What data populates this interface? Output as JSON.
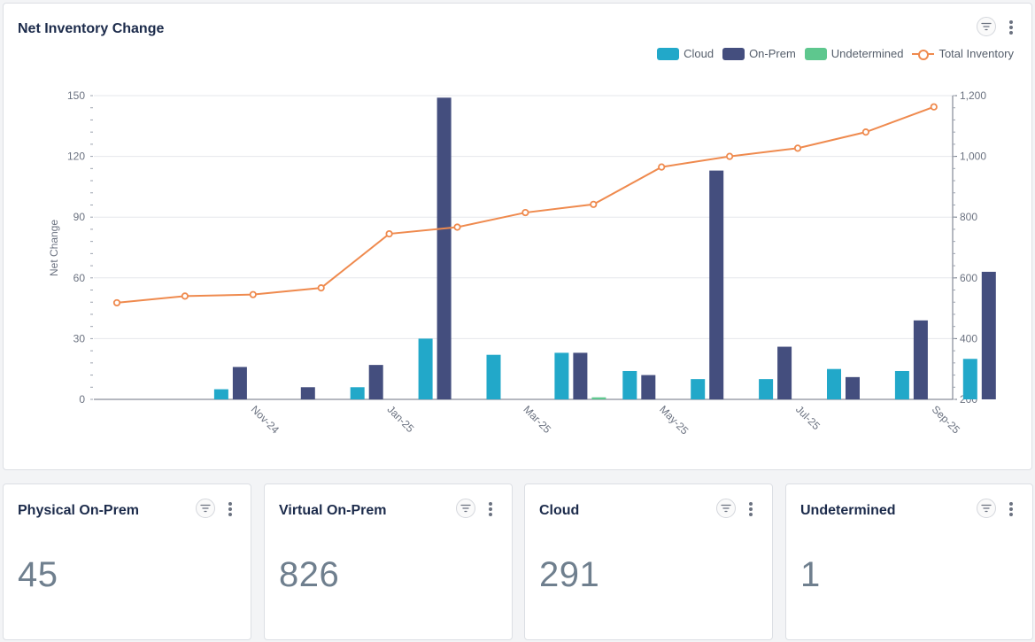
{
  "chart_card": {
    "title": "Net Inventory Change",
    "legend": [
      {
        "label": "Cloud",
        "color": "#22a8c9",
        "kind": "bar"
      },
      {
        "label": "On-Prem",
        "color": "#444e7e",
        "kind": "bar"
      },
      {
        "label": "Undetermined",
        "color": "#5ec78e",
        "kind": "bar"
      },
      {
        "label": "Total Inventory",
        "color": "#ef8a4e",
        "kind": "line"
      }
    ]
  },
  "chart_data": {
    "type": "bar",
    "title": "Net Inventory Change",
    "ylabel": "Net Change",
    "y2label": "",
    "ylim": [
      0,
      150
    ],
    "y2lim": [
      200,
      1200
    ],
    "yticks": [
      0,
      30,
      60,
      90,
      120,
      150
    ],
    "y2ticks": [
      "200",
      "400",
      "600",
      "800",
      "1,000",
      "1,200"
    ],
    "y2tick_values": [
      200,
      400,
      600,
      800,
      1000,
      1200
    ],
    "categories": [
      "Oct-24",
      "Nov-24",
      "Dec-24",
      "Jan-25",
      "Feb-25",
      "Mar-25",
      "Apr-25",
      "May-25",
      "Jun-25",
      "Jul-25",
      "Aug-25",
      "Sep-25",
      "Oct-25"
    ],
    "x_tick_labels": [
      "",
      "Nov-24",
      "",
      "Jan-25",
      "",
      "Mar-25",
      "",
      "May-25",
      "",
      "Jul-25",
      "",
      "Sep-25",
      ""
    ],
    "series": [
      {
        "name": "Cloud",
        "type": "bar",
        "color": "#22a8c9",
        "values": [
          0,
          5,
          0,
          6,
          30,
          22,
          23,
          14,
          10,
          10,
          15,
          14,
          20
        ]
      },
      {
        "name": "On-Prem",
        "type": "bar",
        "color": "#444e7e",
        "values": [
          0,
          16,
          6,
          17,
          149,
          0,
          23,
          12,
          113,
          26,
          11,
          39,
          63
        ]
      },
      {
        "name": "Undetermined",
        "type": "bar",
        "color": "#5ec78e",
        "values": [
          0,
          0,
          0,
          0,
          0,
          0,
          1,
          0,
          0,
          0,
          0,
          0,
          0
        ]
      },
      {
        "name": "Total Inventory",
        "type": "line",
        "axis": "right",
        "color": "#ef8a4e",
        "values": [
          518,
          540,
          545,
          567,
          745,
          767,
          815,
          842,
          965,
          1000,
          1027,
          1080,
          1163
        ]
      }
    ]
  },
  "kpis": [
    {
      "title": "Physical On-Prem",
      "value": "45"
    },
    {
      "title": "Virtual On-Prem",
      "value": "826"
    },
    {
      "title": "Cloud",
      "value": "291"
    },
    {
      "title": "Undetermined",
      "value": "1"
    }
  ]
}
